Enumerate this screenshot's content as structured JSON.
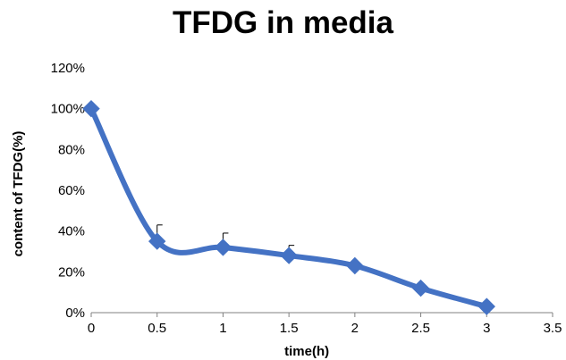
{
  "chart_data": {
    "type": "line",
    "title": "TFDG in media",
    "xlabel": "time(h)",
    "ylabel": "content of TFDG(%)",
    "x_ticks": [
      "0",
      "0.5",
      "1",
      "1.5",
      "2",
      "2.5",
      "3",
      "3.5"
    ],
    "y_ticks": [
      "0%",
      "20%",
      "40%",
      "60%",
      "80%",
      "100%",
      "120%"
    ],
    "xlim": [
      0,
      3.5
    ],
    "ylim": [
      0,
      120
    ],
    "grid": false,
    "series": [
      {
        "x": [
          0,
          0.5,
          1,
          1.5,
          2,
          2.5,
          3
        ],
        "y": [
          100,
          35,
          32,
          28,
          23,
          12,
          3
        ],
        "error_upper": [
          0,
          8,
          7,
          5,
          0,
          0,
          0
        ]
      }
    ],
    "colors": {
      "series": "#4472C4",
      "axis": "#808080"
    }
  }
}
